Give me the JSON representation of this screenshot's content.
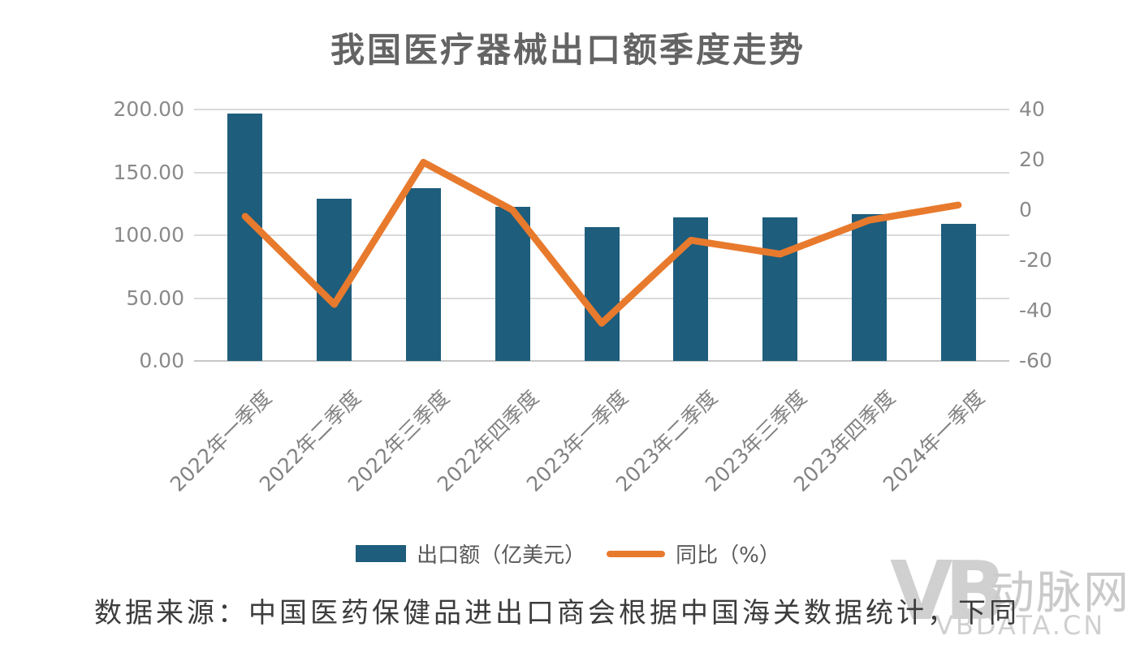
{
  "title": "我国医疗器械出口额季度走势",
  "legend": [
    {
      "label": "出口额（亿美元）",
      "type": "bar",
      "color": "#1e5d7c"
    },
    {
      "label": "同比（%）",
      "type": "line",
      "color": "#e87a2d"
    }
  ],
  "source_note": "数据来源：中国医药保健品进出口商会根据中国海关数据统计，下同",
  "watermark": {
    "logo": "VB",
    "name": "动脉网",
    "domain": "VBDATA.CN"
  },
  "chart_data": {
    "type": "bar+line combo",
    "title": "我国医疗器械出口额季度走势",
    "categories": [
      "2022年一季度",
      "2022年二季度",
      "2022年三季度",
      "2022年四季度",
      "2023年一季度",
      "2023年二季度",
      "2023年三季度",
      "2023年四季度",
      "2024年一季度"
    ],
    "series": [
      {
        "name": "出口额（亿美元）",
        "chart_type": "bar",
        "axis": "left",
        "color": "#1e5d7c",
        "values": [
          197,
          129,
          137.5,
          122.5,
          106.5,
          114.5,
          114.5,
          116.5,
          109
        ]
      },
      {
        "name": "同比（%）",
        "chart_type": "line",
        "axis": "right",
        "color": "#e87a2d",
        "values": [
          -2.5,
          -37.5,
          19,
          0,
          -45,
          -12,
          -17.5,
          -4,
          2
        ]
      }
    ],
    "left_axis": {
      "min": 0,
      "max": 200,
      "tick_labels": [
        "0.00",
        "50.00",
        "100.00",
        "150.00",
        "200.00"
      ]
    },
    "right_axis": {
      "min": -60,
      "max": 40,
      "tick_labels": [
        "-60",
        "-40",
        "-20",
        "0",
        "20",
        "40"
      ]
    },
    "grid": true,
    "legend_position": "bottom"
  }
}
